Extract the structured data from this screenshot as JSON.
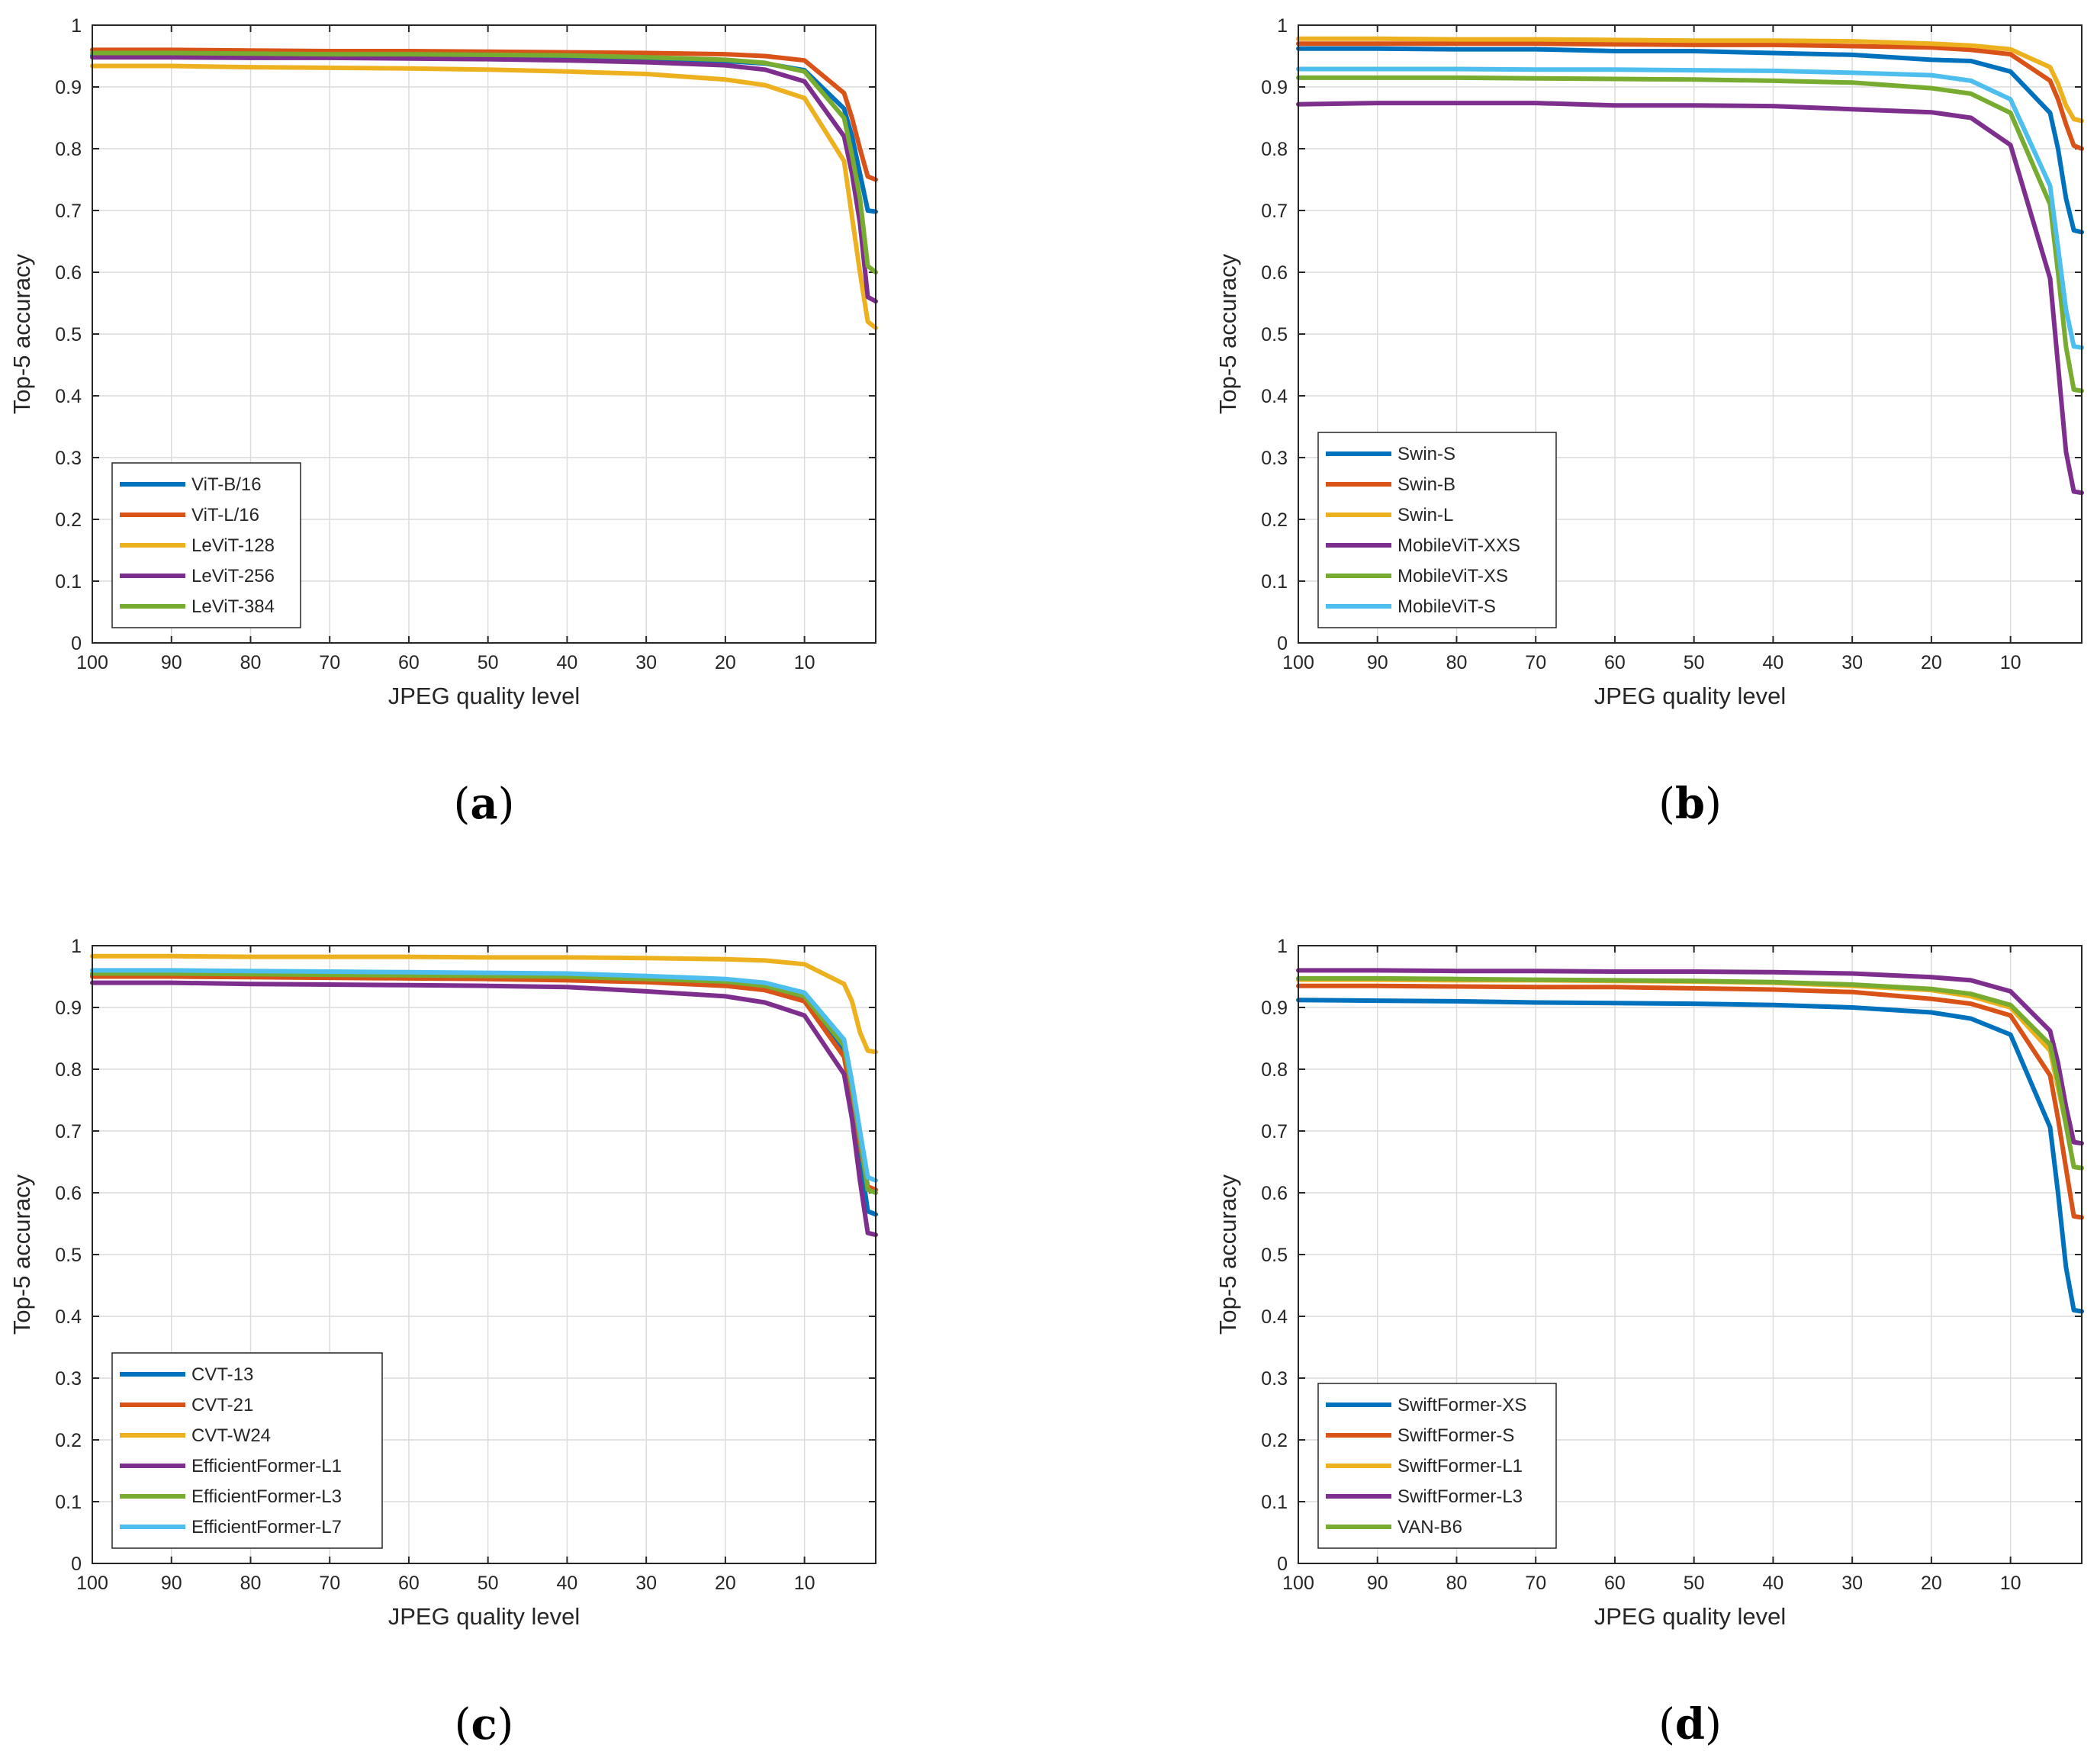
{
  "colors": {
    "blue": "#0072BD",
    "orange": "#D95319",
    "yellow": "#EDB120",
    "purple": "#7E2F8E",
    "green": "#77AC30",
    "cyan": "#4DBEEE"
  },
  "chart_data": [
    {
      "type": "line",
      "panel_label": "a",
      "xlabel": "JPEG quality level",
      "ylabel": "Top-5 accuracy",
      "xlim": [
        100,
        1
      ],
      "x_reversed": true,
      "ylim": [
        0,
        1
      ],
      "xticks": [
        100,
        90,
        80,
        70,
        60,
        50,
        40,
        30,
        20,
        10
      ],
      "yticks": [
        0,
        0.1,
        0.2,
        0.3,
        0.4,
        0.5,
        0.6,
        0.7,
        0.8,
        0.9,
        1
      ],
      "grid": true,
      "legend_position": "bottom-left",
      "x": [
        100,
        90,
        80,
        70,
        60,
        50,
        40,
        30,
        20,
        15,
        10,
        5,
        4,
        3,
        2,
        1
      ],
      "series": [
        {
          "name": "ViT-B/16",
          "color": "#0072BD",
          "values": [
            0.951,
            0.951,
            0.95,
            0.95,
            0.95,
            0.949,
            0.948,
            0.946,
            0.942,
            0.938,
            0.927,
            0.865,
            0.82,
            0.76,
            0.7,
            0.698
          ]
        },
        {
          "name": "ViT-L/16",
          "color": "#D95319",
          "values": [
            0.96,
            0.96,
            0.959,
            0.958,
            0.958,
            0.957,
            0.956,
            0.955,
            0.953,
            0.95,
            0.943,
            0.89,
            0.85,
            0.8,
            0.755,
            0.75
          ]
        },
        {
          "name": "LeViT-128",
          "color": "#EDB120",
          "values": [
            0.934,
            0.934,
            0.932,
            0.931,
            0.93,
            0.928,
            0.925,
            0.921,
            0.912,
            0.903,
            0.882,
            0.78,
            0.69,
            0.6,
            0.52,
            0.51
          ]
        },
        {
          "name": "LeViT-256",
          "color": "#7E2F8E",
          "values": [
            0.948,
            0.948,
            0.947,
            0.947,
            0.946,
            0.945,
            0.943,
            0.94,
            0.935,
            0.928,
            0.909,
            0.82,
            0.76,
            0.68,
            0.56,
            0.553
          ]
        },
        {
          "name": "LeViT-384",
          "color": "#77AC30",
          "values": [
            0.955,
            0.955,
            0.954,
            0.953,
            0.953,
            0.952,
            0.951,
            0.948,
            0.944,
            0.939,
            0.925,
            0.85,
            0.79,
            0.72,
            0.61,
            0.6
          ]
        }
      ]
    },
    {
      "type": "line",
      "panel_label": "b",
      "xlabel": "JPEG quality level",
      "ylabel": "Top-5 accuracy",
      "xlim": [
        100,
        1
      ],
      "x_reversed": true,
      "ylim": [
        0,
        1
      ],
      "xticks": [
        100,
        90,
        80,
        70,
        60,
        50,
        40,
        30,
        20,
        10
      ],
      "yticks": [
        0,
        0.1,
        0.2,
        0.3,
        0.4,
        0.5,
        0.6,
        0.7,
        0.8,
        0.9,
        1
      ],
      "grid": true,
      "legend_position": "bottom-left",
      "x": [
        100,
        90,
        80,
        70,
        60,
        50,
        40,
        30,
        20,
        15,
        10,
        5,
        4,
        3,
        2,
        1
      ],
      "series": [
        {
          "name": "Swin-S",
          "color": "#0072BD",
          "values": [
            0.962,
            0.962,
            0.961,
            0.961,
            0.958,
            0.958,
            0.955,
            0.952,
            0.944,
            0.942,
            0.925,
            0.858,
            0.8,
            0.72,
            0.668,
            0.665
          ]
        },
        {
          "name": "Swin-B",
          "color": "#D95319",
          "values": [
            0.97,
            0.97,
            0.97,
            0.97,
            0.969,
            0.968,
            0.968,
            0.966,
            0.964,
            0.96,
            0.953,
            0.91,
            0.88,
            0.84,
            0.805,
            0.8
          ]
        },
        {
          "name": "Swin-L",
          "color": "#EDB120",
          "values": [
            0.978,
            0.978,
            0.977,
            0.977,
            0.976,
            0.975,
            0.975,
            0.974,
            0.97,
            0.967,
            0.961,
            0.932,
            0.905,
            0.87,
            0.848,
            0.845
          ]
        },
        {
          "name": "MobileViT-XXS",
          "color": "#7E2F8E",
          "values": [
            0.872,
            0.874,
            0.874,
            0.874,
            0.87,
            0.87,
            0.869,
            0.864,
            0.859,
            0.85,
            0.806,
            0.59,
            0.45,
            0.31,
            0.245,
            0.243
          ]
        },
        {
          "name": "MobileViT-XS",
          "color": "#77AC30",
          "values": [
            0.915,
            0.915,
            0.915,
            0.914,
            0.913,
            0.912,
            0.91,
            0.907,
            0.898,
            0.889,
            0.858,
            0.71,
            0.6,
            0.48,
            0.41,
            0.408
          ]
        },
        {
          "name": "MobileViT-S",
          "color": "#4DBEEE",
          "values": [
            0.929,
            0.929,
            0.929,
            0.928,
            0.928,
            0.927,
            0.926,
            0.923,
            0.919,
            0.91,
            0.88,
            0.74,
            0.64,
            0.54,
            0.48,
            0.478
          ]
        }
      ]
    },
    {
      "type": "line",
      "panel_label": "c",
      "xlabel": "JPEG quality level",
      "ylabel": "Top-5 accuracy",
      "xlim": [
        100,
        1
      ],
      "x_reversed": true,
      "ylim": [
        0,
        1
      ],
      "xticks": [
        100,
        90,
        80,
        70,
        60,
        50,
        40,
        30,
        20,
        10
      ],
      "yticks": [
        0,
        0.1,
        0.2,
        0.3,
        0.4,
        0.5,
        0.6,
        0.7,
        0.8,
        0.9,
        1
      ],
      "grid": true,
      "legend_position": "bottom-left",
      "x": [
        100,
        90,
        80,
        70,
        60,
        50,
        40,
        30,
        20,
        15,
        10,
        5,
        4,
        3,
        2,
        1
      ],
      "series": [
        {
          "name": "CVT-13",
          "color": "#0072BD",
          "values": [
            0.953,
            0.953,
            0.952,
            0.951,
            0.951,
            0.95,
            0.949,
            0.946,
            0.94,
            0.934,
            0.916,
            0.83,
            0.76,
            0.66,
            0.57,
            0.565
          ]
        },
        {
          "name": "CVT-21",
          "color": "#D95319",
          "values": [
            0.95,
            0.95,
            0.949,
            0.948,
            0.947,
            0.946,
            0.944,
            0.941,
            0.935,
            0.928,
            0.91,
            0.82,
            0.75,
            0.68,
            0.61,
            0.605
          ]
        },
        {
          "name": "CVT-W24",
          "color": "#EDB120",
          "values": [
            0.983,
            0.983,
            0.982,
            0.982,
            0.982,
            0.981,
            0.981,
            0.98,
            0.978,
            0.976,
            0.97,
            0.938,
            0.91,
            0.86,
            0.83,
            0.828
          ]
        },
        {
          "name": "EfficientFormer-L1",
          "color": "#7E2F8E",
          "values": [
            0.94,
            0.94,
            0.938,
            0.937,
            0.936,
            0.935,
            0.933,
            0.926,
            0.918,
            0.908,
            0.887,
            0.792,
            0.72,
            0.62,
            0.535,
            0.532
          ]
        },
        {
          "name": "EfficientFormer-L3",
          "color": "#77AC30",
          "values": [
            0.955,
            0.955,
            0.954,
            0.953,
            0.952,
            0.951,
            0.95,
            0.946,
            0.942,
            0.935,
            0.918,
            0.838,
            0.77,
            0.69,
            0.605,
            0.6
          ]
        },
        {
          "name": "EfficientFormer-L7",
          "color": "#4DBEEE",
          "values": [
            0.96,
            0.96,
            0.959,
            0.958,
            0.957,
            0.956,
            0.955,
            0.951,
            0.946,
            0.94,
            0.924,
            0.848,
            0.78,
            0.7,
            0.625,
            0.62
          ]
        }
      ]
    },
    {
      "type": "line",
      "panel_label": "d",
      "xlabel": "JPEG quality level",
      "ylabel": "Top-5 accuracy",
      "xlim": [
        100,
        1
      ],
      "x_reversed": true,
      "ylim": [
        0,
        1
      ],
      "xticks": [
        100,
        90,
        80,
        70,
        60,
        50,
        40,
        30,
        20,
        10
      ],
      "yticks": [
        0,
        0.1,
        0.2,
        0.3,
        0.4,
        0.5,
        0.6,
        0.7,
        0.8,
        0.9,
        1
      ],
      "grid": true,
      "legend_position": "bottom-left",
      "x": [
        100,
        90,
        80,
        70,
        60,
        50,
        40,
        30,
        20,
        15,
        10,
        5,
        4,
        3,
        2,
        1
      ],
      "series": [
        {
          "name": "SwiftFormer-XS",
          "color": "#0072BD",
          "values": [
            0.912,
            0.911,
            0.91,
            0.908,
            0.907,
            0.906,
            0.904,
            0.9,
            0.892,
            0.882,
            0.856,
            0.706,
            0.6,
            0.48,
            0.41,
            0.408
          ]
        },
        {
          "name": "SwiftFormer-S",
          "color": "#D95319",
          "values": [
            0.935,
            0.935,
            0.934,
            0.933,
            0.933,
            0.931,
            0.929,
            0.925,
            0.914,
            0.906,
            0.887,
            0.79,
            0.72,
            0.64,
            0.562,
            0.56
          ]
        },
        {
          "name": "SwiftFormer-L1",
          "color": "#EDB120",
          "values": [
            0.945,
            0.945,
            0.944,
            0.944,
            0.943,
            0.942,
            0.94,
            0.935,
            0.928,
            0.918,
            0.9,
            0.83,
            0.77,
            0.71,
            0.642,
            0.64
          ]
        },
        {
          "name": "SwiftFormer-L3",
          "color": "#7E2F8E",
          "values": [
            0.96,
            0.96,
            0.959,
            0.959,
            0.958,
            0.958,
            0.957,
            0.955,
            0.949,
            0.944,
            0.926,
            0.862,
            0.81,
            0.74,
            0.682,
            0.68
          ]
        },
        {
          "name": "VAN-B6",
          "color": "#77AC30",
          "values": [
            0.947,
            0.947,
            0.946,
            0.945,
            0.944,
            0.943,
            0.941,
            0.937,
            0.93,
            0.922,
            0.904,
            0.84,
            0.78,
            0.71,
            0.642,
            0.64
          ]
        }
      ]
    }
  ]
}
